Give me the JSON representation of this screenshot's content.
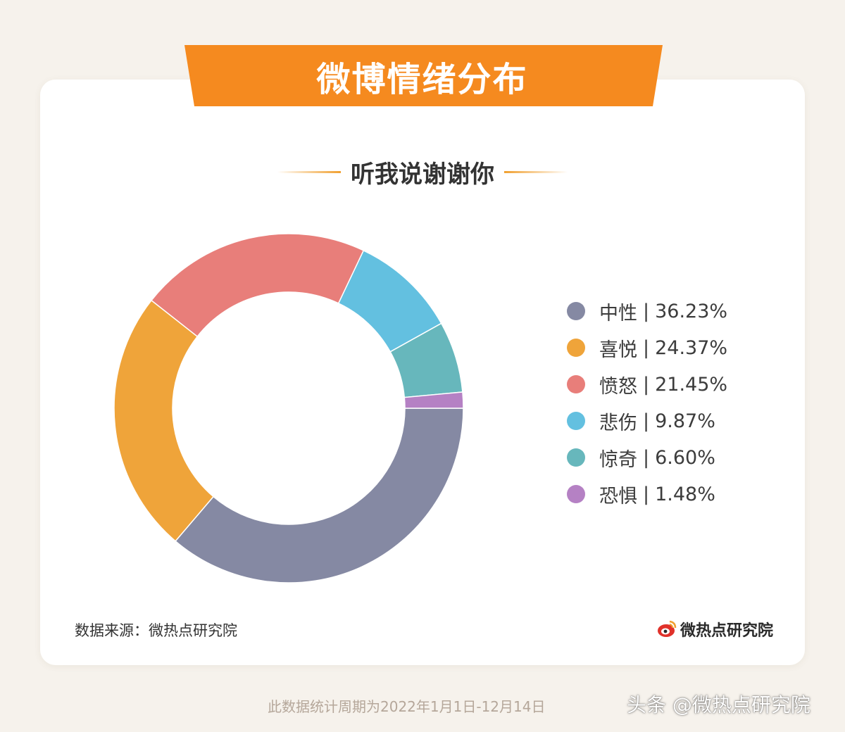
{
  "header": {
    "title": "微博情绪分布",
    "subtitle": "听我说谢谢你",
    "banner_color": "#f58a1f"
  },
  "chart_data": {
    "type": "pie",
    "donut": true,
    "categories": [
      "中性",
      "喜悦",
      "愤怒",
      "悲伤",
      "惊奇",
      "恐惧"
    ],
    "values": [
      36.23,
      24.37,
      21.45,
      9.87,
      6.6,
      1.48
    ],
    "labels": [
      "36.23%",
      "24.37%",
      "21.45%",
      "9.87%",
      "6.60%",
      "1.48%"
    ],
    "colors": [
      "#8589a3",
      "#efa43a",
      "#e87e7a",
      "#63c0e0",
      "#67b7bc",
      "#b581c4"
    ],
    "legend_position": "right",
    "start": "3 o'clock",
    "direction": "clockwise"
  },
  "footer": {
    "source": "数据来源：微热点研究院",
    "logo_text": "微热点研究院",
    "note": "此数据统计周期为2022年1月1日-12月14日",
    "watermark": "头条 @微热点研究院"
  }
}
